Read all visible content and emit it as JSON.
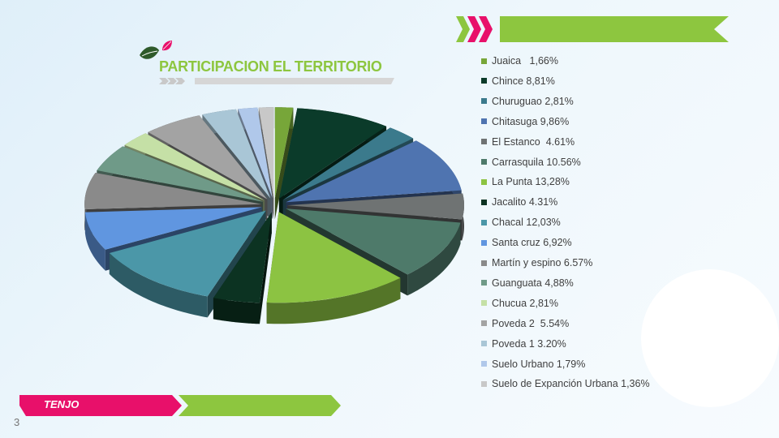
{
  "slide": {
    "title": "PARTICIPACION EL TERRITORIO",
    "brand": "TENJO",
    "page_number": "3",
    "colors": {
      "accent_green": "#8dc63f",
      "accent_pink": "#e8106a",
      "title_green": "#8dc63f"
    },
    "icons": [
      "leaf-icon",
      "leaf-icon",
      "chevron-arrows-icon"
    ]
  },
  "chart_data": {
    "type": "pie",
    "style": "3d-exploded",
    "legend_position": "right",
    "series": [
      {
        "name": "Juaica",
        "label": "Juaica   1,66%",
        "value": 1.66,
        "color": "#77a639"
      },
      {
        "name": "Chince",
        "label": "Chince 8,81%",
        "value": 8.81,
        "color": "#0b3b2a"
      },
      {
        "name": "Churuguao",
        "label": "Churuguao 2,81%",
        "value": 2.81,
        "color": "#3b7a8c"
      },
      {
        "name": "Chitasuga",
        "label": "Chitasuga 9,86%",
        "value": 9.86,
        "color": "#4f74b0"
      },
      {
        "name": "El Estanco",
        "label": "El Estanco  4.61%",
        "value": 4.61,
        "color": "#6f7373"
      },
      {
        "name": "Carrasquila",
        "label": "Carrasquila 10.56%",
        "value": 10.56,
        "color": "#4e7a6a"
      },
      {
        "name": "La Punta",
        "label": "La Punta 13,28%",
        "value": 13.28,
        "color": "#8cc342"
      },
      {
        "name": "Jacalito",
        "label": "Jacalito 4.31%",
        "value": 4.31,
        "color": "#0c3322"
      },
      {
        "name": "Chacal",
        "label": "Chacal 12,03%",
        "value": 12.03,
        "color": "#4b97a8"
      },
      {
        "name": "Santa cruz",
        "label": "Santa cruz 6,92%",
        "value": 6.92,
        "color": "#6096e0"
      },
      {
        "name": "Martín y espino",
        "label": "Martín y espino 6.57%",
        "value": 6.57,
        "color": "#8a8a8a"
      },
      {
        "name": "Guanguata",
        "label": "Guanguata 4,88%",
        "value": 4.88,
        "color": "#6f9a88"
      },
      {
        "name": "Chucua",
        "label": "Chucua 2,81%",
        "value": 2.81,
        "color": "#c5e0a6"
      },
      {
        "name": "Poveda 2",
        "label": "Poveda 2  5.54%",
        "value": 5.54,
        "color": "#a3a3a3"
      },
      {
        "name": "Poveda 1",
        "label": "Poveda 1 3.20%",
        "value": 3.2,
        "color": "#a9c6d6"
      },
      {
        "name": "Suelo Urbano",
        "label": "Suelo Urbano 1,79%",
        "value": 1.79,
        "color": "#b0c8ea"
      },
      {
        "name": "Suelo de Expanción Urbana",
        "label": "Suelo de Expanción Urbana 1,36%",
        "value": 1.36,
        "color": "#c8c8c8"
      }
    ]
  }
}
